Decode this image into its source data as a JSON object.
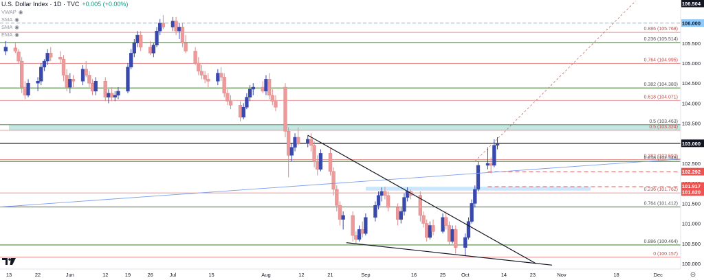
{
  "header": {
    "symbol_title": "U.S. Dollar Index · 1D · TVC",
    "change": "+0.005 (+0.00%)"
  },
  "indicators": [
    {
      "label": "VWAP",
      "icon": "eye-icon"
    },
    {
      "label": "SMA",
      "icon": "eye-icon"
    },
    {
      "label": "SMA",
      "icon": "eye-icon"
    },
    {
      "label": "EMA",
      "icon": "eye-icon"
    }
  ],
  "colors": {
    "up": "#3949ab",
    "down": "#ef9a9a",
    "fib_red": "#e57373",
    "fib_green": "#4e8a3e",
    "black_level": "#000000",
    "dashed_blue": "#64b5f6",
    "trendline_blue": "#7b9cf0",
    "zone": "#b2dfdb",
    "zone_blue": "#bbdefb",
    "badge_red": "#ef5350"
  },
  "chart_data": {
    "type": "candlestick",
    "title": "U.S. Dollar Index · 1D · TVC",
    "ylim": [
      99.93,
      106.6
    ],
    "x_ticks": [
      {
        "label": "13",
        "date": "2023-05-13"
      },
      {
        "label": "22",
        "date": "2023-05-22"
      },
      {
        "label": "Jun",
        "date": "2023-06-01"
      },
      {
        "label": "12",
        "date": "2023-06-12"
      },
      {
        "label": "19",
        "date": "2023-06-19"
      },
      {
        "label": "26",
        "date": "2023-06-26"
      },
      {
        "label": "Jul",
        "date": "2023-07-03"
      },
      {
        "label": "15",
        "date": "2023-07-15"
      },
      {
        "label": "Aug",
        "date": "2023-08-01"
      },
      {
        "label": "12",
        "date": "2023-08-12"
      },
      {
        "label": "21",
        "date": "2023-08-21"
      },
      {
        "label": "Sep",
        "date": "2023-09-01"
      },
      {
        "label": "16",
        "date": "2023-09-16"
      },
      {
        "label": "25",
        "date": "2023-09-25"
      },
      {
        "label": "Oct",
        "date": "2023-10-02"
      },
      {
        "label": "14",
        "date": "2023-10-14"
      },
      {
        "label": "23",
        "date": "2023-10-23"
      },
      {
        "label": "Nov",
        "date": "2023-11-01"
      },
      {
        "label": "18",
        "date": "2023-11-18"
      },
      {
        "label": "Dec",
        "date": "2023-12-01"
      }
    ],
    "y_ticks": [
      "106.000",
      "105.500",
      "105.000",
      "104.500",
      "104.000",
      "103.500",
      "103.000",
      "102.500",
      "102.000",
      "101.500",
      "101.000",
      "100.500",
      "100.000"
    ],
    "price_badges": [
      {
        "label": "106.504",
        "value": 106.504,
        "style": "dark"
      },
      {
        "label": "106.000",
        "value": 106.0,
        "style": "blue"
      },
      {
        "label": "103.000",
        "value": 103.0,
        "style": "dark"
      },
      {
        "label": "102.292",
        "value": 102.292,
        "style": "red"
      },
      {
        "label": "101.917",
        "value": 101.917,
        "style": "red"
      },
      {
        "label": "101.820",
        "value": 101.82,
        "style": "red"
      }
    ],
    "fib_levels": [
      {
        "label": "0.886 (105.768)",
        "value": 105.768,
        "color": "red"
      },
      {
        "label": "0.236 (105.514)",
        "value": 105.514,
        "color": "green"
      },
      {
        "label": "0.764 (104.995)",
        "value": 104.995,
        "color": "red"
      },
      {
        "label": "0.382 (104.380)",
        "value": 104.38,
        "color": "green"
      },
      {
        "label": "0.618 (104.071)",
        "value": 104.071,
        "color": "red"
      },
      {
        "label": "0.5 (103.463)",
        "value": 103.463,
        "color": "green"
      },
      {
        "label": "0.5 (103.324)",
        "value": 103.324,
        "color": "red"
      },
      {
        "label": "0.382 (102.592)",
        "value": 102.592,
        "color": "red"
      },
      {
        "label": "0.618 (102.548)",
        "value": 102.548,
        "color": "green"
      },
      {
        "label": "0.236 (101.762)",
        "value": 101.762,
        "color": "red"
      },
      {
        "label": "0.764 (101.412)",
        "value": 101.412,
        "color": "green"
      },
      {
        "label": "0.886 (100.464)",
        "value": 100.464,
        "color": "green"
      },
      {
        "label": "0 (100.157)",
        "value": 100.157,
        "color": "red"
      }
    ],
    "zones": [
      {
        "from": 103.324,
        "to": 103.463,
        "start": "2023-05-13",
        "end": "2023-12-10",
        "color": "zone"
      },
      {
        "from": 101.82,
        "to": 101.917,
        "start": "2023-09-01",
        "end": "2023-11-10",
        "color": "zone_blue"
      }
    ],
    "levels": [
      {
        "value": 106.0,
        "style": "dashed_blue"
      },
      {
        "value": 103.0,
        "style": "black_level"
      },
      {
        "value": 102.292,
        "style": "dashed_red",
        "start": "2023-10-09"
      },
      {
        "value": 101.917,
        "style": "dashed_red",
        "start": "2023-10-09"
      }
    ],
    "trendlines": [
      {
        "from": [
          "2023-05-10",
          101.41
        ],
        "to": [
          "2023-12-10",
          102.62
        ],
        "style": "blue"
      },
      {
        "from": [
          "2023-08-14",
          103.2
        ],
        "to": [
          "2023-10-24",
          100.0
        ],
        "style": "black"
      },
      {
        "from": [
          "2023-08-26",
          100.52
        ],
        "to": [
          "2023-10-29",
          99.96
        ],
        "style": "black"
      },
      {
        "from": [
          "2023-10-05",
          102.55
        ],
        "to": [
          "2023-11-24",
          106.55
        ],
        "style": "dashed_red"
      }
    ],
    "candles": [
      {
        "date": "2023-05-12",
        "o": 105.3,
        "h": 105.55,
        "l": 105.2,
        "c": 105.4
      },
      {
        "date": "2023-05-15",
        "o": 105.38,
        "h": 105.5,
        "l": 105.25,
        "c": 105.3
      },
      {
        "date": "2023-05-16",
        "o": 105.28,
        "h": 105.35,
        "l": 104.98,
        "c": 105.05
      },
      {
        "date": "2023-05-17",
        "o": 105.05,
        "h": 105.15,
        "l": 104.25,
        "c": 104.4
      },
      {
        "date": "2023-05-18",
        "o": 104.4,
        "h": 104.55,
        "l": 104.1,
        "c": 104.2
      },
      {
        "date": "2023-05-19",
        "o": 104.2,
        "h": 104.6,
        "l": 104.15,
        "c": 104.5
      },
      {
        "date": "2023-05-22",
        "o": 104.5,
        "h": 104.65,
        "l": 104.3,
        "c": 104.55
      },
      {
        "date": "2023-05-23",
        "o": 104.55,
        "h": 105.0,
        "l": 104.45,
        "c": 104.9
      },
      {
        "date": "2023-05-24",
        "o": 104.9,
        "h": 105.1,
        "l": 104.8,
        "c": 105.05
      },
      {
        "date": "2023-05-25",
        "o": 105.05,
        "h": 105.35,
        "l": 104.95,
        "c": 105.25
      },
      {
        "date": "2023-05-26",
        "o": 105.25,
        "h": 105.4,
        "l": 105.05,
        "c": 105.15
      },
      {
        "date": "2023-05-29",
        "o": 105.15,
        "h": 105.3,
        "l": 105.0,
        "c": 105.1
      },
      {
        "date": "2023-05-30",
        "o": 105.1,
        "h": 105.2,
        "l": 104.55,
        "c": 104.7
      },
      {
        "date": "2023-05-31",
        "o": 104.7,
        "h": 104.85,
        "l": 104.3,
        "c": 104.4
      },
      {
        "date": "2023-06-01",
        "o": 104.4,
        "h": 104.75,
        "l": 104.25,
        "c": 104.6
      },
      {
        "date": "2023-06-02",
        "o": 104.6,
        "h": 104.7,
        "l": 104.4,
        "c": 104.55
      },
      {
        "date": "2023-06-05",
        "o": 104.55,
        "h": 104.95,
        "l": 104.45,
        "c": 104.85
      },
      {
        "date": "2023-06-06",
        "o": 104.85,
        "h": 105.05,
        "l": 104.65,
        "c": 104.7
      },
      {
        "date": "2023-06-07",
        "o": 104.7,
        "h": 104.8,
        "l": 104.4,
        "c": 104.5
      },
      {
        "date": "2023-06-08",
        "o": 104.5,
        "h": 104.6,
        "l": 104.2,
        "c": 104.3
      },
      {
        "date": "2023-06-09",
        "o": 104.3,
        "h": 104.65,
        "l": 104.2,
        "c": 104.55
      },
      {
        "date": "2023-06-12",
        "o": 104.55,
        "h": 104.65,
        "l": 104.05,
        "c": 104.15
      },
      {
        "date": "2023-06-13",
        "o": 104.15,
        "h": 104.35,
        "l": 104.0,
        "c": 104.25
      },
      {
        "date": "2023-06-14",
        "o": 104.25,
        "h": 104.4,
        "l": 104.05,
        "c": 104.15
      },
      {
        "date": "2023-06-15",
        "o": 104.15,
        "h": 104.3,
        "l": 104.05,
        "c": 104.2
      },
      {
        "date": "2023-06-16",
        "o": 104.2,
        "h": 104.4,
        "l": 104.1,
        "c": 104.3
      },
      {
        "date": "2023-06-19",
        "o": 104.3,
        "h": 105.0,
        "l": 104.25,
        "c": 104.9
      },
      {
        "date": "2023-06-20",
        "o": 104.9,
        "h": 105.35,
        "l": 104.85,
        "c": 105.25
      },
      {
        "date": "2023-06-21",
        "o": 105.25,
        "h": 105.6,
        "l": 105.15,
        "c": 105.5
      },
      {
        "date": "2023-06-22",
        "o": 105.5,
        "h": 105.8,
        "l": 105.4,
        "c": 105.7
      },
      {
        "date": "2023-06-23",
        "o": 105.7,
        "h": 105.8,
        "l": 105.3,
        "c": 105.4
      },
      {
        "date": "2023-06-26",
        "o": 105.4,
        "h": 105.55,
        "l": 105.2,
        "c": 105.25
      },
      {
        "date": "2023-06-27",
        "o": 105.25,
        "h": 105.5,
        "l": 105.15,
        "c": 105.45
      },
      {
        "date": "2023-06-28",
        "o": 105.45,
        "h": 105.9,
        "l": 105.4,
        "c": 105.8
      },
      {
        "date": "2023-06-29",
        "o": 105.8,
        "h": 106.1,
        "l": 105.7,
        "c": 106.0
      },
      {
        "date": "2023-06-30",
        "o": 106.0,
        "h": 106.2,
        "l": 105.85,
        "c": 105.9
      },
      {
        "date": "2023-07-03",
        "o": 105.9,
        "h": 106.15,
        "l": 105.8,
        "c": 106.05
      },
      {
        "date": "2023-07-04",
        "o": 106.05,
        "h": 106.15,
        "l": 105.7,
        "c": 105.8
      },
      {
        "date": "2023-07-05",
        "o": 105.8,
        "h": 106.0,
        "l": 105.6,
        "c": 105.9
      },
      {
        "date": "2023-07-06",
        "o": 105.9,
        "h": 106.0,
        "l": 105.4,
        "c": 105.5
      },
      {
        "date": "2023-07-07",
        "o": 105.5,
        "h": 105.7,
        "l": 105.25,
        "c": 105.3
      },
      {
        "date": "2023-07-10",
        "o": 105.3,
        "h": 105.4,
        "l": 104.95,
        "c": 105.0
      },
      {
        "date": "2023-07-11",
        "o": 105.0,
        "h": 105.15,
        "l": 104.7,
        "c": 104.8
      },
      {
        "date": "2023-07-12",
        "o": 104.8,
        "h": 104.95,
        "l": 104.6,
        "c": 104.7
      },
      {
        "date": "2023-07-13",
        "o": 104.7,
        "h": 104.8,
        "l": 104.5,
        "c": 104.6
      },
      {
        "date": "2023-07-14",
        "o": 104.6,
        "h": 104.75,
        "l": 104.4,
        "c": 104.55
      },
      {
        "date": "2023-07-17",
        "o": 104.55,
        "h": 104.85,
        "l": 104.45,
        "c": 104.75
      },
      {
        "date": "2023-07-18",
        "o": 104.75,
        "h": 104.9,
        "l": 104.55,
        "c": 104.65
      },
      {
        "date": "2023-07-19",
        "o": 104.65,
        "h": 104.75,
        "l": 104.15,
        "c": 104.25
      },
      {
        "date": "2023-07-20",
        "o": 104.25,
        "h": 104.35,
        "l": 103.95,
        "c": 104.05
      },
      {
        "date": "2023-07-21",
        "o": 104.05,
        "h": 104.2,
        "l": 103.85,
        "c": 103.95
      },
      {
        "date": "2023-07-24",
        "o": 103.95,
        "h": 104.05,
        "l": 103.55,
        "c": 103.65
      },
      {
        "date": "2023-07-25",
        "o": 103.65,
        "h": 104.0,
        "l": 103.6,
        "c": 103.9
      },
      {
        "date": "2023-07-26",
        "o": 103.9,
        "h": 104.25,
        "l": 103.85,
        "c": 104.15
      },
      {
        "date": "2023-07-27",
        "o": 104.15,
        "h": 104.45,
        "l": 104.05,
        "c": 104.35
      },
      {
        "date": "2023-07-28",
        "o": 104.35,
        "h": 104.5,
        "l": 104.2,
        "c": 104.4
      },
      {
        "date": "2023-07-31",
        "o": 104.4,
        "h": 104.55,
        "l": 104.25,
        "c": 104.3
      },
      {
        "date": "2023-08-01",
        "o": 104.3,
        "h": 104.7,
        "l": 104.2,
        "c": 104.6
      },
      {
        "date": "2023-08-02",
        "o": 104.6,
        "h": 104.75,
        "l": 104.1,
        "c": 104.2
      },
      {
        "date": "2023-08-03",
        "o": 104.2,
        "h": 104.35,
        "l": 103.95,
        "c": 104.05
      },
      {
        "date": "2023-08-04",
        "o": 104.05,
        "h": 104.2,
        "l": 103.8,
        "c": 103.9
      },
      {
        "date": "2023-08-07",
        "o": 104.4,
        "h": 104.5,
        "l": 103.15,
        "c": 103.3
      },
      {
        "date": "2023-08-08",
        "o": 103.3,
        "h": 103.4,
        "l": 102.15,
        "c": 102.7
      },
      {
        "date": "2023-08-09",
        "o": 102.7,
        "h": 103.0,
        "l": 102.55,
        "c": 102.9
      },
      {
        "date": "2023-08-10",
        "o": 102.9,
        "h": 103.25,
        "l": 102.8,
        "c": 103.15
      },
      {
        "date": "2023-08-11",
        "o": 103.15,
        "h": 103.4,
        "l": 102.95,
        "c": 103.0
      },
      {
        "date": "2023-08-14",
        "o": 103.0,
        "h": 103.2,
        "l": 102.9,
        "c": 103.1
      },
      {
        "date": "2023-08-15",
        "o": 103.1,
        "h": 103.25,
        "l": 102.8,
        "c": 102.95
      },
      {
        "date": "2023-08-16",
        "o": 102.95,
        "h": 103.05,
        "l": 102.4,
        "c": 102.55
      },
      {
        "date": "2023-08-17",
        "o": 102.55,
        "h": 102.7,
        "l": 102.2,
        "c": 102.35
      },
      {
        "date": "2023-08-18",
        "o": 102.35,
        "h": 102.85,
        "l": 102.3,
        "c": 102.75
      },
      {
        "date": "2023-08-21",
        "o": 102.75,
        "h": 102.9,
        "l": 102.2,
        "c": 102.3
      },
      {
        "date": "2023-08-22",
        "o": 102.3,
        "h": 102.4,
        "l": 101.7,
        "c": 101.85
      },
      {
        "date": "2023-08-23",
        "o": 101.85,
        "h": 101.95,
        "l": 101.3,
        "c": 101.45
      },
      {
        "date": "2023-08-24",
        "o": 101.45,
        "h": 101.55,
        "l": 100.95,
        "c": 101.1
      },
      {
        "date": "2023-08-25",
        "o": 101.1,
        "h": 101.3,
        "l": 100.85,
        "c": 101.2
      },
      {
        "date": "2023-08-28",
        "o": 101.2,
        "h": 101.3,
        "l": 100.55,
        "c": 100.7
      },
      {
        "date": "2023-08-29",
        "o": 100.7,
        "h": 100.8,
        "l": 100.5,
        "c": 100.6
      },
      {
        "date": "2023-08-30",
        "o": 100.6,
        "h": 100.95,
        "l": 100.55,
        "c": 100.85
      },
      {
        "date": "2023-08-31",
        "o": 100.85,
        "h": 101.05,
        "l": 100.65,
        "c": 100.75
      },
      {
        "date": "2023-09-01",
        "o": 100.75,
        "h": 101.25,
        "l": 100.7,
        "c": 101.15
      },
      {
        "date": "2023-09-04",
        "o": 101.15,
        "h": 101.55,
        "l": 101.05,
        "c": 101.45
      },
      {
        "date": "2023-09-05",
        "o": 101.45,
        "h": 101.8,
        "l": 101.35,
        "c": 101.7
      },
      {
        "date": "2023-09-06",
        "o": 101.7,
        "h": 101.9,
        "l": 101.55,
        "c": 101.8
      },
      {
        "date": "2023-09-07",
        "o": 101.8,
        "h": 101.92,
        "l": 101.6,
        "c": 101.7
      },
      {
        "date": "2023-09-08",
        "o": 101.7,
        "h": 101.8,
        "l": 101.3,
        "c": 101.4
      },
      {
        "date": "2023-09-11",
        "o": 101.4,
        "h": 101.5,
        "l": 100.95,
        "c": 101.1
      },
      {
        "date": "2023-09-12",
        "o": 101.1,
        "h": 101.4,
        "l": 101.0,
        "c": 101.3
      },
      {
        "date": "2023-09-13",
        "o": 101.3,
        "h": 101.75,
        "l": 101.2,
        "c": 101.65
      },
      {
        "date": "2023-09-14",
        "o": 101.65,
        "h": 101.9,
        "l": 101.55,
        "c": 101.8
      },
      {
        "date": "2023-09-15",
        "o": 101.8,
        "h": 101.85,
        "l": 101.6,
        "c": 101.7
      },
      {
        "date": "2023-09-18",
        "o": 101.7,
        "h": 101.8,
        "l": 101.05,
        "c": 101.2
      },
      {
        "date": "2023-09-19",
        "o": 101.2,
        "h": 101.3,
        "l": 100.9,
        "c": 101.0
      },
      {
        "date": "2023-09-20",
        "o": 101.0,
        "h": 101.1,
        "l": 100.55,
        "c": 100.65
      },
      {
        "date": "2023-09-21",
        "o": 100.65,
        "h": 101.05,
        "l": 100.6,
        "c": 100.95
      },
      {
        "date": "2023-09-22",
        "o": 100.95,
        "h": 101.1,
        "l": 100.7,
        "c": 100.8
      },
      {
        "date": "2023-09-25",
        "o": 100.8,
        "h": 101.25,
        "l": 100.75,
        "c": 101.15
      },
      {
        "date": "2023-09-26",
        "o": 101.15,
        "h": 101.3,
        "l": 100.85,
        "c": 100.95
      },
      {
        "date": "2023-09-27",
        "o": 100.95,
        "h": 101.05,
        "l": 100.45,
        "c": 100.55
      },
      {
        "date": "2023-09-28",
        "o": 100.55,
        "h": 100.95,
        "l": 100.5,
        "c": 100.85
      },
      {
        "date": "2023-09-29",
        "o": 100.85,
        "h": 100.95,
        "l": 100.25,
        "c": 100.4
      },
      {
        "date": "2023-10-02",
        "o": 100.4,
        "h": 100.75,
        "l": 100.2,
        "c": 100.65
      },
      {
        "date": "2023-10-03",
        "o": 100.65,
        "h": 101.15,
        "l": 100.6,
        "c": 101.05
      },
      {
        "date": "2023-10-04",
        "o": 101.05,
        "h": 101.6,
        "l": 101.0,
        "c": 101.5
      },
      {
        "date": "2023-10-05",
        "o": 101.5,
        "h": 101.95,
        "l": 101.4,
        "c": 101.85
      },
      {
        "date": "2023-10-06",
        "o": 101.85,
        "h": 102.55,
        "l": 101.8,
        "c": 102.45
      },
      {
        "date": "2023-10-09",
        "o": 102.45,
        "h": 102.9,
        "l": 102.35,
        "c": 102.5
      },
      {
        "date": "2023-10-10",
        "o": 102.5,
        "h": 102.65,
        "l": 102.25,
        "c": 102.45
      },
      {
        "date": "2023-10-11",
        "o": 102.45,
        "h": 103.1,
        "l": 102.4,
        "c": 102.95
      },
      {
        "date": "2023-10-12",
        "o": 102.95,
        "h": 103.15,
        "l": 102.85,
        "c": 102.98
      }
    ]
  }
}
